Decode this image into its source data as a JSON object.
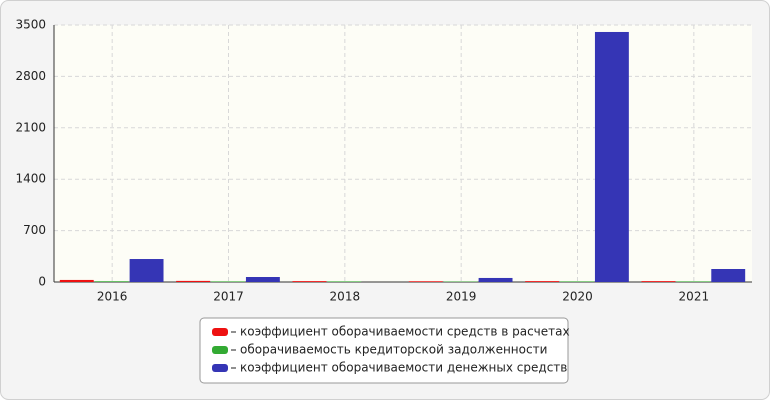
{
  "chart_data": {
    "type": "bar",
    "categories": [
      "2016",
      "2017",
      "2018",
      "2019",
      "2020",
      "2021"
    ],
    "series": [
      {
        "name": "коэффициент оборачиваемости средств в расчетах",
        "color": "#ee1111",
        "values": [
          28,
          15,
          12,
          10,
          12,
          12
        ]
      },
      {
        "name": "оборачиваемость кредиторской задолженности",
        "color": "#33aa33",
        "values": [
          10,
          8,
          8,
          6,
          8,
          8
        ]
      },
      {
        "name": "коэффициент оборачиваемости денежных средств",
        "color": "#3535b5",
        "values": [
          313,
          68,
          0,
          55,
          3405,
          177
        ]
      }
    ],
    "ylim": [
      0,
      3500
    ],
    "yticks": [
      0,
      700,
      1400,
      2100,
      2800,
      3500
    ],
    "grid": true
  }
}
